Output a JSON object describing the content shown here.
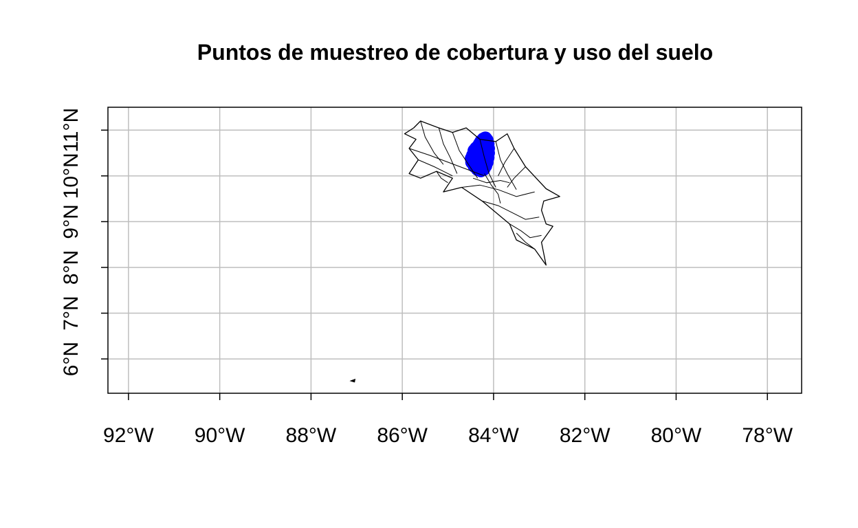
{
  "title": "Puntos de muestreo de cobertura y uso del suelo",
  "map": {
    "type": "choropleth-outline",
    "xlim": [
      -92.45,
      -77.25
    ],
    "ylim": [
      5.25,
      11.5
    ],
    "grid": true,
    "x_ticks": [
      {
        "value": -92,
        "label": "92°W"
      },
      {
        "value": -90,
        "label": "90°W"
      },
      {
        "value": -88,
        "label": "88°W"
      },
      {
        "value": -86,
        "label": "86°W"
      },
      {
        "value": -84,
        "label": "84°W"
      },
      {
        "value": -82,
        "label": "82°W"
      },
      {
        "value": -80,
        "label": "80°W"
      },
      {
        "value": -78,
        "label": "78°W"
      }
    ],
    "y_ticks": [
      {
        "value": 6,
        "label": "6°N"
      },
      {
        "value": 7,
        "label": "7°N"
      },
      {
        "value": 8,
        "label": "8°N"
      },
      {
        "value": 9,
        "label": "9°N"
      },
      {
        "value": 10,
        "label": "10°N"
      },
      {
        "value": 11,
        "label": "11°N"
      }
    ],
    "colors": {
      "outline": "#000000",
      "points": "#0000ff",
      "grid": "#bebebe"
    },
    "country_outline": [
      [
        -85.95,
        10.92
      ],
      [
        -85.75,
        11.05
      ],
      [
        -85.6,
        11.2
      ],
      [
        -85.2,
        11.05
      ],
      [
        -84.9,
        10.95
      ],
      [
        -84.6,
        11.05
      ],
      [
        -84.3,
        10.8
      ],
      [
        -83.95,
        10.75
      ],
      [
        -83.7,
        10.92
      ],
      [
        -83.55,
        10.6
      ],
      [
        -83.3,
        10.2
      ],
      [
        -82.85,
        9.72
      ],
      [
        -82.55,
        9.55
      ],
      [
        -82.9,
        9.45
      ],
      [
        -82.95,
        9.25
      ],
      [
        -82.85,
        8.95
      ],
      [
        -82.7,
        8.9
      ],
      [
        -82.95,
        8.55
      ],
      [
        -82.85,
        8.05
      ],
      [
        -83.1,
        8.4
      ],
      [
        -83.5,
        8.6
      ],
      [
        -83.65,
        8.95
      ],
      [
        -84.25,
        9.45
      ],
      [
        -84.7,
        9.75
      ],
      [
        -85.1,
        9.65
      ],
      [
        -84.9,
        9.95
      ],
      [
        -85.25,
        10.1
      ],
      [
        -85.6,
        9.95
      ],
      [
        -85.85,
        10.05
      ],
      [
        -85.65,
        10.35
      ],
      [
        -85.85,
        10.6
      ],
      [
        -85.7,
        10.8
      ],
      [
        -85.95,
        10.92
      ]
    ],
    "internal_boundaries": [
      [
        [
          -85.6,
          11.2
        ],
        [
          -85.5,
          10.85
        ],
        [
          -85.3,
          10.5
        ],
        [
          -85.1,
          10.25
        ]
      ],
      [
        [
          -85.2,
          11.05
        ],
        [
          -85.1,
          10.7
        ],
        [
          -84.95,
          10.4
        ],
        [
          -84.8,
          10.05
        ]
      ],
      [
        [
          -84.9,
          10.95
        ],
        [
          -84.75,
          10.55
        ],
        [
          -84.55,
          10.25
        ],
        [
          -84.35,
          9.95
        ]
      ],
      [
        [
          -84.3,
          10.8
        ],
        [
          -84.2,
          10.4
        ],
        [
          -84.1,
          10.05
        ],
        [
          -83.95,
          9.75
        ]
      ],
      [
        [
          -83.95,
          10.75
        ],
        [
          -83.85,
          10.35
        ],
        [
          -83.7,
          10.05
        ],
        [
          -83.5,
          9.7
        ]
      ],
      [
        [
          -85.85,
          10.6
        ],
        [
          -85.4,
          10.45
        ],
        [
          -85.0,
          10.3
        ],
        [
          -84.6,
          10.15
        ],
        [
          -84.2,
          10.0
        ]
      ],
      [
        [
          -85.65,
          10.35
        ],
        [
          -85.3,
          10.2
        ],
        [
          -84.9,
          10.0
        ]
      ],
      [
        [
          -84.7,
          9.75
        ],
        [
          -84.3,
          9.8
        ],
        [
          -83.9,
          9.7
        ],
        [
          -83.5,
          9.55
        ],
        [
          -83.1,
          9.65
        ]
      ],
      [
        [
          -84.25,
          9.45
        ],
        [
          -83.9,
          9.35
        ],
        [
          -83.6,
          9.2
        ],
        [
          -83.3,
          9.05
        ],
        [
          -83.0,
          9.1
        ]
      ],
      [
        [
          -83.65,
          8.95
        ],
        [
          -83.4,
          8.8
        ],
        [
          -83.2,
          8.65
        ],
        [
          -82.95,
          8.7
        ]
      ],
      [
        [
          -83.55,
          10.6
        ],
        [
          -83.75,
          10.3
        ],
        [
          -83.9,
          10.0
        ]
      ],
      [
        [
          -83.3,
          10.2
        ],
        [
          -83.55,
          9.95
        ],
        [
          -83.7,
          9.75
        ]
      ],
      [
        [
          -84.45,
          9.95
        ],
        [
          -84.15,
          9.85
        ],
        [
          -83.85,
          9.9
        ],
        [
          -83.65,
          9.85
        ]
      ],
      [
        [
          -84.2,
          10.05
        ],
        [
          -84.05,
          9.8
        ],
        [
          -83.9,
          9.6
        ],
        [
          -83.85,
          9.4
        ]
      ],
      [
        [
          -85.25,
          10.1
        ],
        [
          -85.15,
          9.95
        ],
        [
          -85.0,
          9.85
        ]
      ],
      [
        [
          -83.1,
          8.4
        ],
        [
          -83.3,
          8.55
        ],
        [
          -83.5,
          8.75
        ]
      ]
    ],
    "island_outline": [
      [
        -87.12,
        5.52
      ],
      [
        -87.04,
        5.55
      ],
      [
        -87.05,
        5.5
      ],
      [
        -87.12,
        5.52
      ]
    ],
    "sample_points": [
      [
        -84.45,
        10.45
      ],
      [
        -84.42,
        10.55
      ],
      [
        -84.38,
        10.6
      ],
      [
        -84.33,
        10.65
      ],
      [
        -84.3,
        10.7
      ],
      [
        -84.27,
        10.75
      ],
      [
        -84.22,
        10.8
      ],
      [
        -84.18,
        10.82
      ],
      [
        -84.15,
        10.78
      ],
      [
        -84.13,
        10.7
      ],
      [
        -84.12,
        10.6
      ],
      [
        -84.12,
        10.5
      ],
      [
        -84.13,
        10.4
      ],
      [
        -84.15,
        10.3
      ],
      [
        -84.18,
        10.22
      ],
      [
        -84.22,
        10.15
      ],
      [
        -84.28,
        10.12
      ],
      [
        -84.35,
        10.15
      ],
      [
        -84.42,
        10.22
      ],
      [
        -84.47,
        10.3
      ],
      [
        -84.48,
        10.38
      ],
      [
        -84.35,
        10.45
      ],
      [
        -84.3,
        10.35
      ],
      [
        -84.25,
        10.5
      ],
      [
        -84.2,
        10.65
      ],
      [
        -84.28,
        10.25
      ],
      [
        -84.22,
        10.4
      ],
      [
        -84.38,
        10.35
      ],
      [
        -84.33,
        10.55
      ],
      [
        -84.17,
        10.45
      ],
      [
        -84.2,
        10.55
      ],
      [
        -84.4,
        10.28
      ],
      [
        -84.25,
        10.3
      ],
      [
        -84.3,
        10.45
      ],
      [
        -84.16,
        10.7
      ]
    ]
  }
}
